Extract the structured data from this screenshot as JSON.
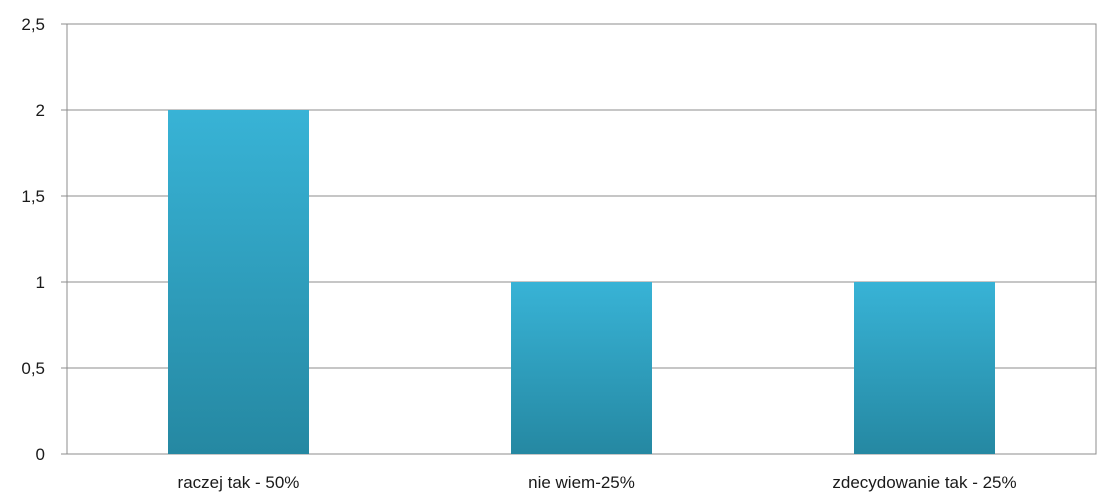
{
  "chart_data": {
    "type": "bar",
    "categories": [
      "raczej tak - 50%",
      "nie wiem-25%",
      "zdecydowanie tak - 25%"
    ],
    "values": [
      2,
      1,
      1
    ],
    "ylim": [
      0,
      2.5
    ],
    "yticks": [
      "0",
      "0,5",
      "1",
      "1,5",
      "2",
      "2,5"
    ],
    "grid": true,
    "bar_color_top": "#38b3d6",
    "bar_color_bottom": "#2588a2"
  }
}
